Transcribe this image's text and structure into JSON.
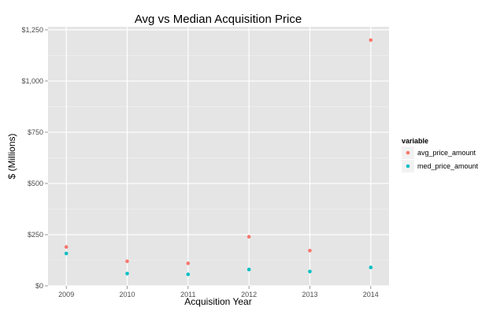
{
  "chart_data": {
    "type": "scatter",
    "title": "Avg vs Median Acquisition Price",
    "xlabel": "Acquisition Year",
    "ylabel": "$ (Millions)",
    "x": [
      2009,
      2010,
      2011,
      2012,
      2013,
      2014
    ],
    "x_tick_labels": [
      "2009",
      "2010",
      "2011",
      "2012",
      "2013",
      "2014"
    ],
    "y_ticks": [
      0,
      250,
      500,
      750,
      1000,
      1250
    ],
    "y_tick_labels": [
      "$0",
      "$250",
      "$500",
      "$750",
      "$1,000",
      "$1,250"
    ],
    "xlim": [
      2008.7,
      2014.3
    ],
    "ylim": [
      0,
      1265
    ],
    "grid": true,
    "legend_title": "variable",
    "legend_position": "right",
    "series": [
      {
        "name": "avg_price_amount",
        "color": "#F8766D",
        "values": [
          190,
          120,
          110,
          240,
          172,
          1200
        ]
      },
      {
        "name": "med_price_amount",
        "color": "#00BFC4",
        "values": [
          158,
          60,
          56,
          80,
          70,
          90
        ]
      }
    ]
  }
}
